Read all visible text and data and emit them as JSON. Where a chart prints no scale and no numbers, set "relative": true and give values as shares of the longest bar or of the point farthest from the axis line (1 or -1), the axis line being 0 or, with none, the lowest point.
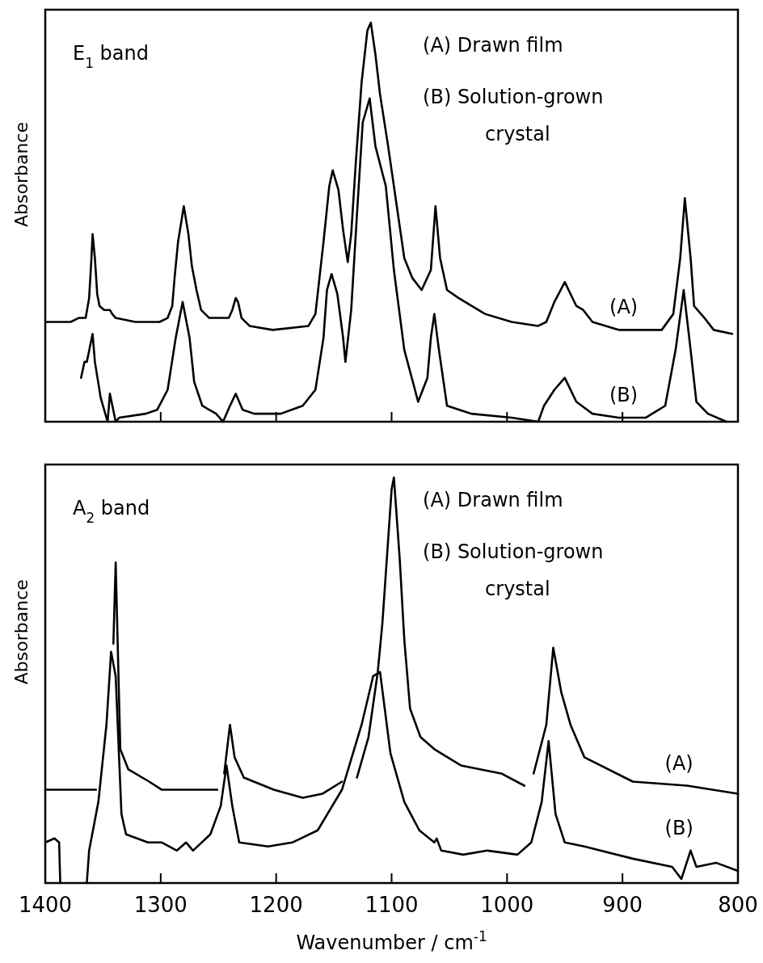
{
  "chart_data": [
    {
      "type": "line",
      "relative": true,
      "ylabel": "Absorbance",
      "xlim": [
        1400,
        800
      ],
      "xticks": [
        1400,
        1300,
        1200,
        1100,
        1000,
        900,
        800
      ],
      "tick_labels": false,
      "annotations": [
        "E$_{1}$ band",
        "(A) Drawn film",
        "(B) Solution-grown crystal"
      ],
      "series": [
        {
          "name": "(A)",
          "color": "#000000",
          "x": [
            1399,
            1378,
            1371,
            1365,
            1362,
            1360,
            1359,
            1357,
            1355,
            1353,
            1349,
            1346,
            1344,
            1342,
            1339,
            1322,
            1301,
            1294,
            1290,
            1288,
            1285,
            1280,
            1276,
            1273,
            1269,
            1265,
            1258,
            1248,
            1241,
            1238,
            1235,
            1233,
            1230,
            1223,
            1203,
            1172,
            1166,
            1159,
            1154,
            1151,
            1146,
            1142,
            1138,
            1135,
            1131,
            1126,
            1121,
            1118,
            1114,
            1110,
            1103,
            1098,
            1089,
            1082,
            1074,
            1066,
            1062,
            1058,
            1052,
            1042,
            1019,
            996,
            973,
            966,
            959,
            950,
            940,
            934,
            926,
            903,
            880,
            866,
            856,
            850,
            846,
            841,
            838,
            829,
            821,
            805
          ],
          "values": [
            0.25,
            0.25,
            0.26,
            0.26,
            0.31,
            0.41,
            0.47,
            0.41,
            0.32,
            0.29,
            0.28,
            0.28,
            0.28,
            0.27,
            0.26,
            0.25,
            0.25,
            0.26,
            0.29,
            0.36,
            0.45,
            0.54,
            0.47,
            0.39,
            0.33,
            0.28,
            0.26,
            0.26,
            0.26,
            0.28,
            0.31,
            0.3,
            0.26,
            0.24,
            0.23,
            0.24,
            0.27,
            0.45,
            0.59,
            0.63,
            0.58,
            0.48,
            0.4,
            0.47,
            0.65,
            0.85,
            0.98,
            1.0,
            0.92,
            0.82,
            0.69,
            0.59,
            0.41,
            0.36,
            0.33,
            0.38,
            0.54,
            0.41,
            0.33,
            0.31,
            0.27,
            0.25,
            0.24,
            0.25,
            0.3,
            0.35,
            0.29,
            0.28,
            0.25,
            0.23,
            0.23,
            0.23,
            0.27,
            0.41,
            0.56,
            0.41,
            0.29,
            0.26,
            0.23,
            0.22
          ]
        },
        {
          "name": "(B)",
          "color": "#000000",
          "x": [
            1369,
            1366,
            1364,
            1359,
            1357,
            1352,
            1346,
            1344,
            1339,
            1336,
            1313,
            1303,
            1294,
            1287,
            1281,
            1275,
            1271,
            1264,
            1252,
            1246,
            1240,
            1235,
            1229,
            1219,
            1196,
            1177,
            1166,
            1159,
            1156,
            1152,
            1147,
            1142,
            1140,
            1135,
            1130,
            1125,
            1119,
            1114,
            1105,
            1098,
            1089,
            1077,
            1069,
            1066,
            1063,
            1059,
            1052,
            1031,
            996,
            973,
            968,
            959,
            950,
            940,
            926,
            903,
            880,
            863,
            854,
            847,
            841,
            836,
            826,
            810
          ],
          "values": [
            0.11,
            0.15,
            0.15,
            0.22,
            0.15,
            0.06,
            0,
            0.07,
            0,
            0.01,
            0.02,
            0.03,
            0.08,
            0.21,
            0.3,
            0.21,
            0.1,
            0.04,
            0.02,
            0,
            0.04,
            0.07,
            0.03,
            0.02,
            0.02,
            0.04,
            0.08,
            0.21,
            0.33,
            0.37,
            0.32,
            0.21,
            0.15,
            0.28,
            0.52,
            0.75,
            0.81,
            0.69,
            0.59,
            0.38,
            0.18,
            0.05,
            0.11,
            0.21,
            0.27,
            0.18,
            0.04,
            0.02,
            0.01,
            0,
            0.04,
            0.08,
            0.11,
            0.05,
            0.02,
            0.01,
            0.01,
            0.04,
            0.18,
            0.33,
            0.18,
            0.05,
            0.02,
            0
          ]
        }
      ]
    },
    {
      "type": "line",
      "relative": true,
      "ylabel": "Absorbance",
      "xlabel": "Wavenumber / cm$^{-1}$",
      "xlim": [
        1400,
        800
      ],
      "xticks": [
        1400,
        1300,
        1200,
        1100,
        1000,
        900,
        800
      ],
      "annotations": [
        "A$_{2}$ band",
        "(A) Drawn film",
        "(B) Solution-grown crystal"
      ],
      "series": [
        {
          "name": "(A)",
          "color": "#000000",
          "x": [
            1400,
            1356,
            1352,
            1341,
            1339,
            1335,
            1328,
            1310,
            1299,
            1251,
            1248,
            1245,
            1240,
            1236,
            1228,
            1202,
            1177,
            1160,
            1143,
            1138,
            1130,
            1120,
            1112,
            1108,
            1100,
            1098,
            1093,
            1089,
            1084,
            1075,
            1063,
            1040,
            1005,
            985,
            980,
            977,
            966,
            960,
            953,
            945,
            933,
            891,
            844,
            800
          ],
          "values": [
            0.23,
            0.23,
            null,
            0.59,
            0.79,
            0.33,
            0.28,
            0.25,
            0.23,
            0.23,
            null,
            0.27,
            0.39,
            0.31,
            0.26,
            0.23,
            0.21,
            0.22,
            0.25,
            null,
            0.26,
            0.36,
            0.52,
            0.64,
            0.97,
            1.0,
            0.8,
            0.6,
            0.43,
            0.36,
            0.33,
            0.29,
            0.27,
            0.24,
            null,
            0.27,
            0.39,
            0.58,
            0.47,
            0.39,
            0.31,
            0.25,
            0.24,
            0.22
          ]
        },
        {
          "name": "(B)",
          "color": "#000000",
          "x": [
            1400,
            1392,
            1388,
            1387,
            1376,
            1364,
            1362,
            1354,
            1347,
            1343,
            1339,
            1334,
            1330,
            1311,
            1299,
            1286,
            1278,
            1272,
            1257,
            1248,
            1243,
            1238,
            1232,
            1207,
            1186,
            1164,
            1143,
            1126,
            1116,
            1110,
            1101,
            1089,
            1076,
            1063,
            1061,
            1057,
            1038,
            1017,
            991,
            979,
            970,
            964,
            958,
            950,
            933,
            891,
            857,
            849,
            841,
            836,
            819,
            800
          ],
          "values": [
            0.1,
            0.11,
            0.1,
            0,
            null,
            0,
            0.08,
            0.2,
            0.39,
            0.57,
            0.51,
            0.17,
            0.12,
            0.1,
            0.1,
            0.08,
            0.1,
            0.08,
            0.12,
            0.19,
            0.29,
            0.19,
            0.1,
            0.09,
            0.1,
            0.13,
            0.23,
            0.39,
            0.51,
            0.52,
            0.32,
            0.2,
            0.13,
            0.1,
            0.11,
            0.08,
            0.07,
            0.08,
            0.07,
            0.1,
            0.2,
            0.35,
            0.17,
            0.1,
            0.09,
            0.06,
            0.04,
            0.01,
            0.08,
            0.04,
            0.05,
            0.03
          ]
        }
      ]
    }
  ]
}
